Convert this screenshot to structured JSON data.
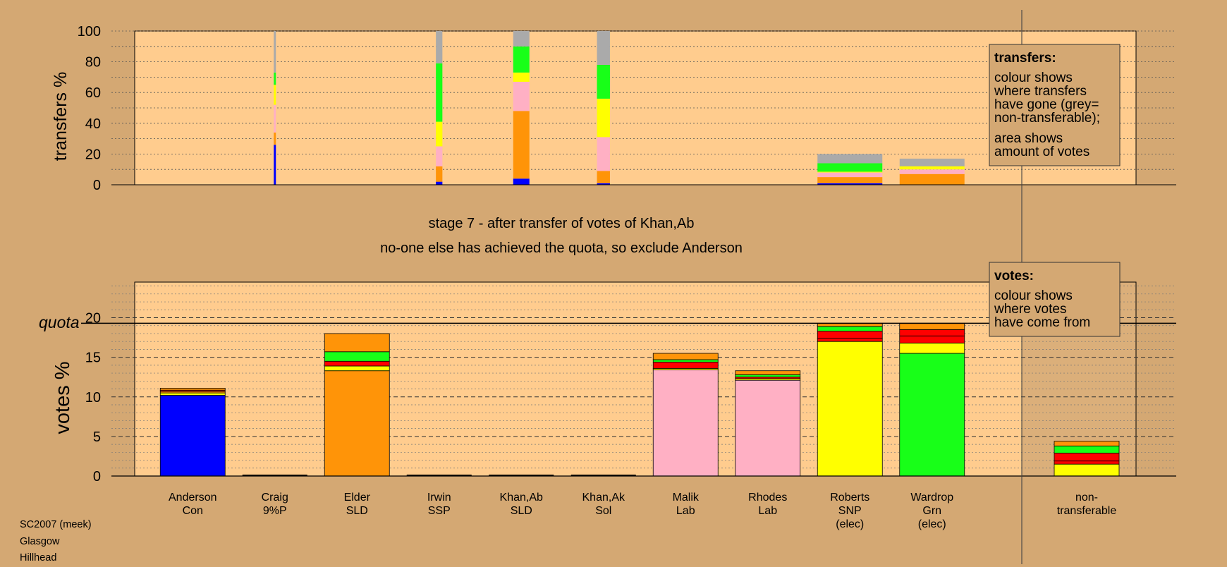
{
  "chart_data": {
    "type": "bar",
    "title": "stage 7 - after transfer of votes of Khan,Ab",
    "subtitle": "no-one else has achieved the quota, so exclude Anderson",
    "colors": {
      "blue": "#0000ff",
      "orange": "#ff9408",
      "pink": "#ffb0c4",
      "yellow": "#ffff00",
      "green": "#18ff18",
      "red": "#ff0000",
      "grey": "#aaaaaa",
      "panel_fill": "#ffcc8e",
      "page_background": "#d4a873"
    },
    "candidates": [
      {
        "name": "Anderson",
        "party": "Con",
        "elected": ""
      },
      {
        "name": "Craig",
        "party": "9%P",
        "elected": ""
      },
      {
        "name": "Elder",
        "party": "SLD",
        "elected": ""
      },
      {
        "name": "Irwin",
        "party": "SSP",
        "elected": ""
      },
      {
        "name": "Khan,Ab",
        "party": "SLD",
        "elected": ""
      },
      {
        "name": "Khan,Ak",
        "party": "Sol",
        "elected": ""
      },
      {
        "name": "Malik",
        "party": "Lab",
        "elected": ""
      },
      {
        "name": "Rhodes",
        "party": "Lab",
        "elected": ""
      },
      {
        "name": "Roberts",
        "party": "SNP",
        "elected": "(elec)"
      },
      {
        "name": "Wardrop",
        "party": "Grn",
        "elected": "(elec)"
      }
    ],
    "nontransferable_label": [
      "non-",
      "transferable"
    ],
    "transfers": {
      "ylabel": "transfers %",
      "ylim": [
        0,
        100
      ],
      "yticks": [
        0,
        20,
        40,
        60,
        80,
        100
      ],
      "bars": [
        {
          "candidate": "Craig",
          "width": 0.03,
          "segments": [
            {
              "color": "blue",
              "value": 26
            },
            {
              "color": "orange",
              "value": 8
            },
            {
              "color": "pink",
              "value": 18
            },
            {
              "color": "yellow",
              "value": 13
            },
            {
              "color": "green",
              "value": 8
            },
            {
              "color": "grey",
              "value": 27
            }
          ]
        },
        {
          "candidate": "Irwin",
          "width": 0.1,
          "segments": [
            {
              "color": "blue",
              "value": 2
            },
            {
              "color": "orange",
              "value": 10
            },
            {
              "color": "pink",
              "value": 13
            },
            {
              "color": "yellow",
              "value": 16
            },
            {
              "color": "green",
              "value": 38
            },
            {
              "color": "grey",
              "value": 21
            }
          ]
        },
        {
          "candidate": "Khan,Ab",
          "width": 0.25,
          "segments": [
            {
              "color": "blue",
              "value": 4
            },
            {
              "color": "orange",
              "value": 44
            },
            {
              "color": "pink",
              "value": 19
            },
            {
              "color": "yellow",
              "value": 6
            },
            {
              "color": "green",
              "value": 17
            },
            {
              "color": "grey",
              "value": 10
            }
          ]
        },
        {
          "candidate": "Khan,Ak",
          "width": 0.2,
          "segments": [
            {
              "color": "blue",
              "value": 1
            },
            {
              "color": "orange",
              "value": 8
            },
            {
              "color": "pink",
              "value": 22
            },
            {
              "color": "yellow",
              "value": 25
            },
            {
              "color": "green",
              "value": 22
            },
            {
              "color": "grey",
              "value": 22
            }
          ]
        },
        {
          "candidate": "Roberts",
          "width": 1.0,
          "segments": [
            {
              "color": "blue",
              "value": 1
            },
            {
              "color": "orange",
              "value": 4
            },
            {
              "color": "pink",
              "value": 3
            },
            {
              "color": "yellow",
              "value": 0.5
            },
            {
              "color": "green",
              "value": 5.5
            },
            {
              "color": "grey",
              "value": 6
            }
          ]
        },
        {
          "candidate": "Wardrop",
          "width": 1.0,
          "segments": [
            {
              "color": "orange",
              "value": 7
            },
            {
              "color": "pink",
              "value": 3
            },
            {
              "color": "yellow",
              "value": 2
            },
            {
              "color": "grey",
              "value": 5
            }
          ]
        }
      ]
    },
    "votes": {
      "ylabel": "votes %",
      "quota_label": "quota",
      "quota": 19.3,
      "ylim": [
        0,
        24.5
      ],
      "yticks": [
        0,
        5,
        10,
        15,
        20
      ],
      "bars": [
        {
          "candidate": "Anderson",
          "segments": [
            {
              "color": "blue",
              "value": 10.2
            },
            {
              "color": "yellow",
              "value": 0.3
            },
            {
              "color": "orange",
              "value": 0.2
            },
            {
              "color": "red",
              "value": 0.15
            },
            {
              "color": "orange",
              "value": 0.25
            }
          ]
        },
        {
          "candidate": "Craig",
          "segments": []
        },
        {
          "candidate": "Elder",
          "segments": [
            {
              "color": "orange",
              "value": 13.3
            },
            {
              "color": "yellow",
              "value": 0.6
            },
            {
              "color": "red",
              "value": 0.6
            },
            {
              "color": "green",
              "value": 1.2
            },
            {
              "color": "orange",
              "value": 2.3
            }
          ]
        },
        {
          "candidate": "Irwin",
          "segments": []
        },
        {
          "candidate": "Khan,Ab",
          "segments": []
        },
        {
          "candidate": "Khan,Ak",
          "segments": []
        },
        {
          "candidate": "Malik",
          "segments": [
            {
              "color": "pink",
              "value": 13.4
            },
            {
              "color": "yellow",
              "value": 0.2
            },
            {
              "color": "red",
              "value": 0.8
            },
            {
              "color": "green",
              "value": 0.3
            },
            {
              "color": "orange",
              "value": 0.8
            }
          ]
        },
        {
          "candidate": "Rhodes",
          "segments": [
            {
              "color": "pink",
              "value": 12.1
            },
            {
              "color": "yellow",
              "value": 0.2
            },
            {
              "color": "red",
              "value": 0.2
            },
            {
              "color": "green",
              "value": 0.3
            },
            {
              "color": "orange",
              "value": 0.5
            }
          ]
        },
        {
          "candidate": "Roberts",
          "segments": [
            {
              "color": "yellow",
              "value": 17.0
            },
            {
              "color": "red",
              "value": 0.4
            },
            {
              "color": "red",
              "value": 0.9
            },
            {
              "color": "green",
              "value": 0.6
            },
            {
              "color": "orange",
              "value": 0.4
            }
          ]
        },
        {
          "candidate": "Wardrop",
          "segments": [
            {
              "color": "green",
              "value": 15.5
            },
            {
              "color": "yellow",
              "value": 1.3
            },
            {
              "color": "red",
              "value": 0.9
            },
            {
              "color": "red",
              "value": 0.8
            },
            {
              "color": "orange",
              "value": 0.8
            }
          ]
        },
        {
          "candidate": "non-transferable",
          "segments": [
            {
              "color": "yellow",
              "value": 1.5
            },
            {
              "color": "red",
              "value": 0.4
            },
            {
              "color": "red",
              "value": 1.0
            },
            {
              "color": "green",
              "value": 0.9
            },
            {
              "color": "orange",
              "value": 0.6
            }
          ]
        }
      ]
    },
    "legends": {
      "transfers": {
        "title": "transfers:",
        "lines": [
          "colour shows",
          "where transfers",
          "have gone (grey=",
          "non-transferable);",
          "area shows",
          "amount of votes"
        ]
      },
      "votes": {
        "title": "votes:",
        "lines": [
          "colour shows",
          "where votes",
          "have come from"
        ]
      }
    }
  },
  "footer": {
    "lines": [
      "SC2007 (meek)",
      "Glasgow",
      "Hillhead"
    ]
  }
}
